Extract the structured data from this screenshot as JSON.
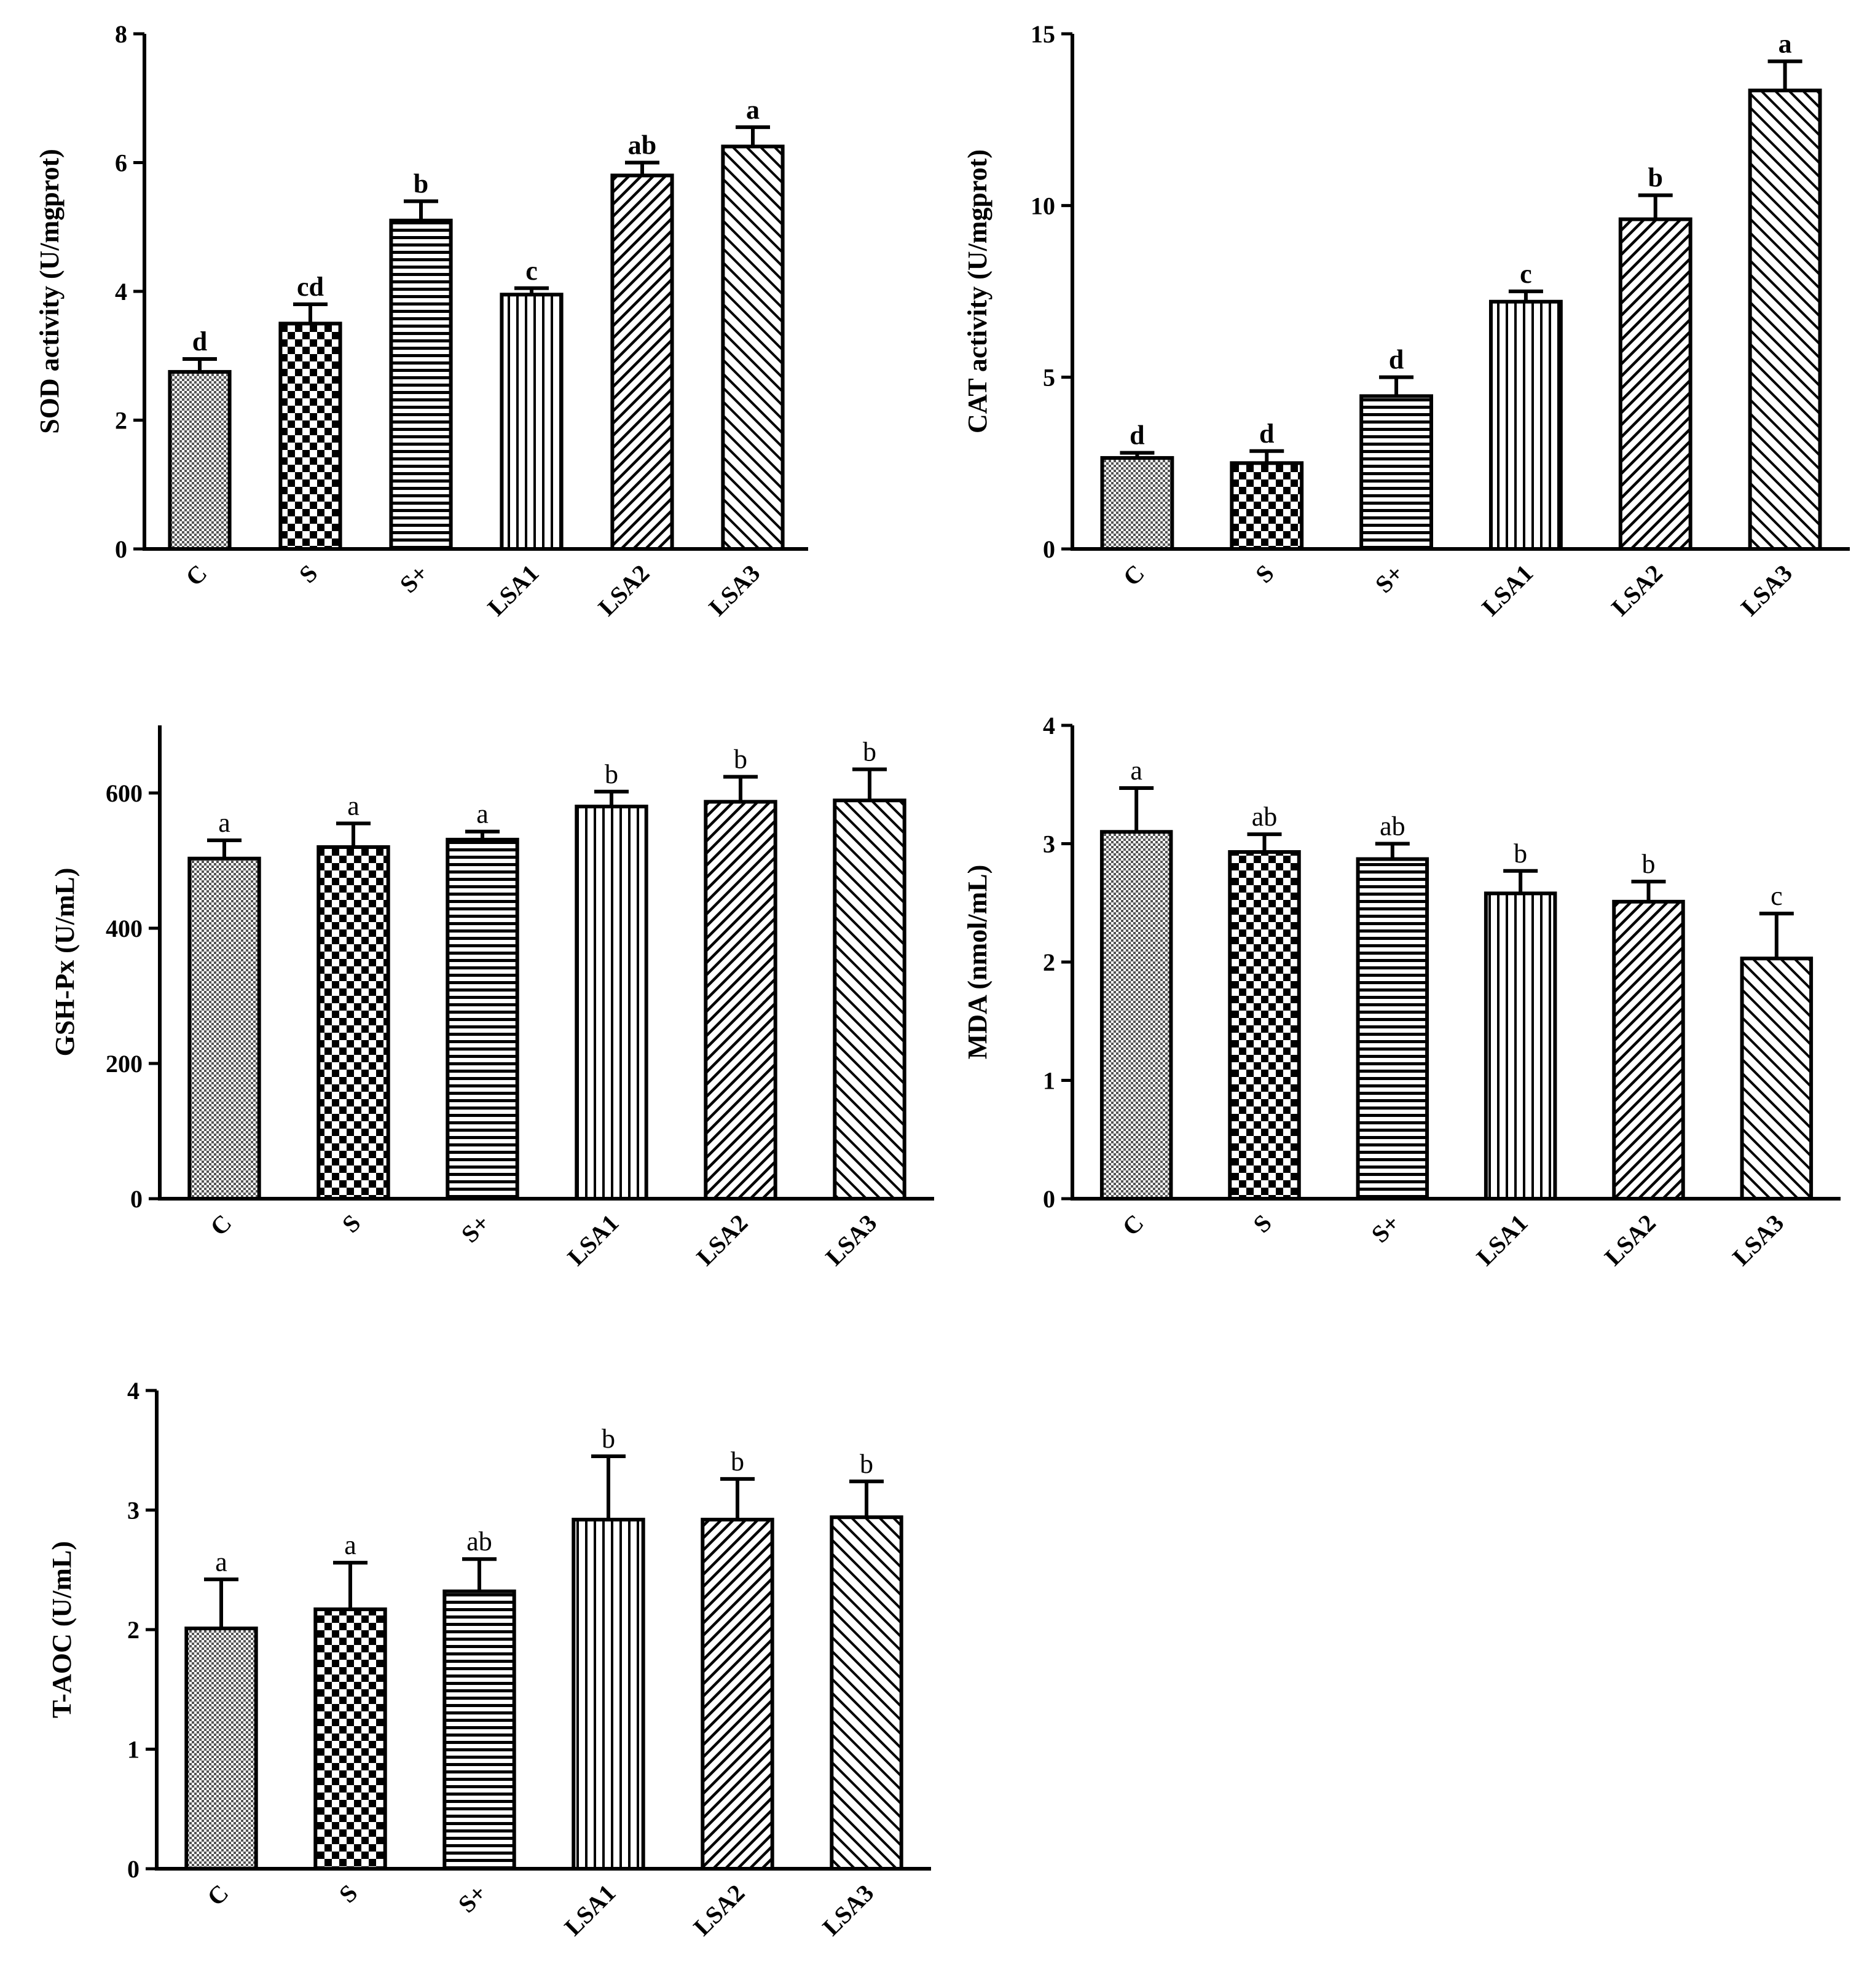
{
  "chart_data": [
    {
      "id": "sod",
      "type": "bar",
      "ylabel": "SOD activity (U/mgprot)",
      "categories": [
        "C",
        "S",
        "S+",
        "LSA1",
        "LSA2",
        "LSA3"
      ],
      "values": [
        2.75,
        3.5,
        5.1,
        3.95,
        5.8,
        6.25
      ],
      "errors": [
        0.2,
        0.3,
        0.3,
        0.1,
        0.2,
        0.3
      ],
      "letters": [
        "d",
        "cd",
        "b",
        "c",
        "ab",
        "a"
      ],
      "ylim": [
        0,
        8
      ],
      "yticks": [
        0,
        2,
        4,
        6,
        8
      ],
      "letters_bold": true
    },
    {
      "id": "cat",
      "type": "bar",
      "ylabel": "CAT activity (U/mgprot)",
      "categories": [
        "C",
        "S",
        "S+",
        "LSA1",
        "LSA2",
        "LSA3"
      ],
      "values": [
        2.65,
        2.5,
        4.45,
        7.2,
        9.6,
        13.35
      ],
      "errors": [
        0.15,
        0.35,
        0.55,
        0.3,
        0.7,
        0.85
      ],
      "letters": [
        "d",
        "d",
        "d",
        "c",
        "b",
        "a"
      ],
      "ylim": [
        0,
        15
      ],
      "yticks": [
        0,
        5,
        10,
        15
      ],
      "letters_bold": true
    },
    {
      "id": "gshpx",
      "type": "bar",
      "ylabel": "GSH-Px (U/mL)",
      "categories": [
        "C",
        "S",
        "S+",
        "LSA1",
        "LSA2",
        "LSA3"
      ],
      "values": [
        503,
        520,
        531,
        580,
        587,
        589
      ],
      "errors": [
        27,
        35,
        12,
        22,
        37,
        46
      ],
      "letters": [
        "a",
        "a",
        "a",
        "b",
        "b",
        "b"
      ],
      "ylim": [
        0,
        700
      ],
      "yticks": [
        0,
        200,
        400,
        600
      ],
      "letters_bold": false
    },
    {
      "id": "mda",
      "type": "bar",
      "ylabel": "MDA (nmol/mL)",
      "categories": [
        "C",
        "S",
        "S+",
        "LSA1",
        "LSA2",
        "LSA3"
      ],
      "values": [
        3.1,
        2.93,
        2.87,
        2.58,
        2.51,
        2.03
      ],
      "errors": [
        0.37,
        0.15,
        0.13,
        0.19,
        0.17,
        0.38
      ],
      "letters": [
        "a",
        "ab",
        "ab",
        "b",
        "b",
        "c"
      ],
      "ylim": [
        0,
        4
      ],
      "yticks": [
        0,
        1,
        2,
        3,
        4
      ],
      "letters_bold": false
    },
    {
      "id": "taoc",
      "type": "bar",
      "ylabel": "T-AOC (U/mL)",
      "categories": [
        "C",
        "S",
        "S+",
        "LSA1",
        "LSA2",
        "LSA3"
      ],
      "values": [
        2.01,
        2.17,
        2.32,
        2.92,
        2.92,
        2.94
      ],
      "errors": [
        0.41,
        0.39,
        0.27,
        0.53,
        0.34,
        0.3
      ],
      "letters": [
        "a",
        "a",
        "ab",
        "b",
        "b",
        "b"
      ],
      "ylim": [
        0,
        4
      ],
      "yticks": [
        0,
        1,
        2,
        3,
        4
      ],
      "letters_bold": false
    }
  ]
}
